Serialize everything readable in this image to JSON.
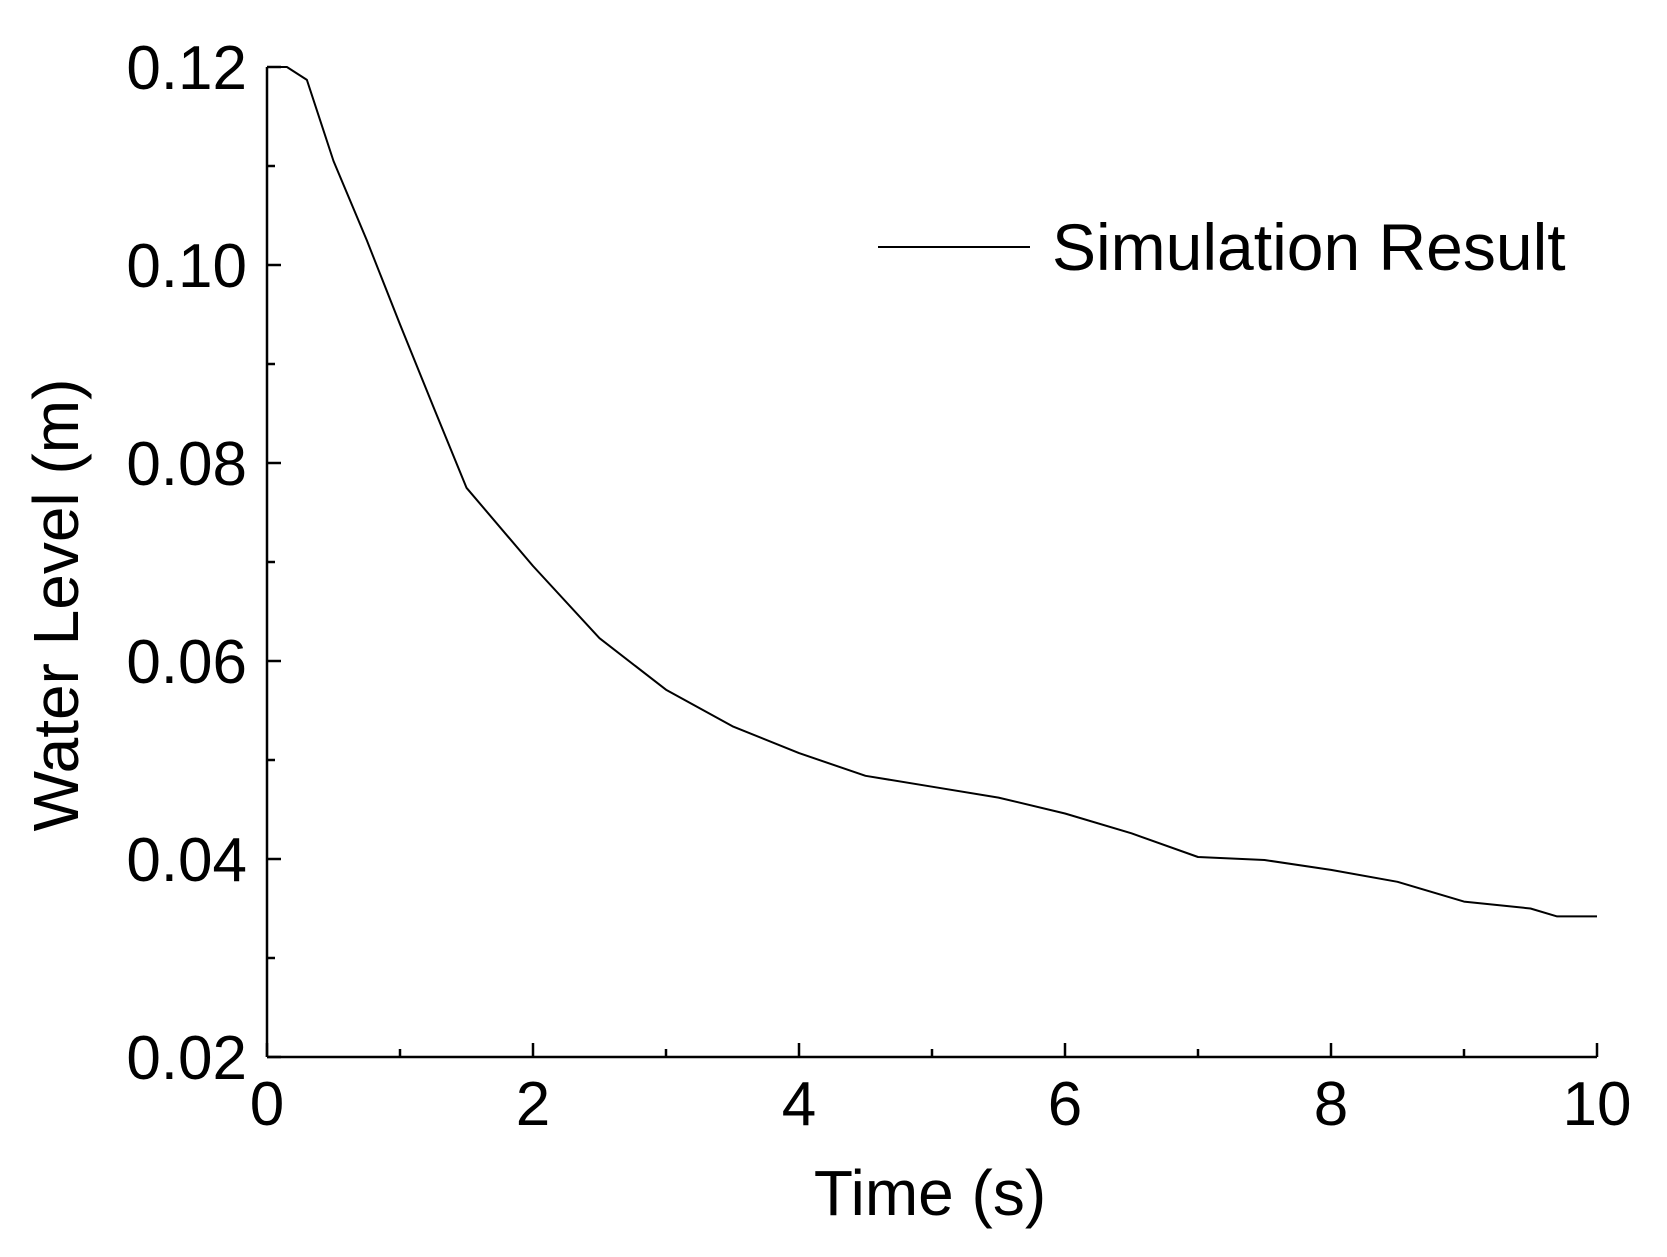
{
  "chart_data": {
    "type": "line",
    "title": "",
    "xlabel": "Time (s)",
    "ylabel": "Water Level (m)",
    "xlim": [
      0,
      10
    ],
    "ylim": [
      0.02,
      0.12
    ],
    "x_ticks": [
      0,
      2,
      4,
      6,
      8,
      10
    ],
    "x_tick_labels": [
      "0",
      "2",
      "4",
      "6",
      "8",
      "10"
    ],
    "y_ticks": [
      0.02,
      0.04,
      0.06,
      0.08,
      0.1,
      0.12
    ],
    "y_tick_labels": [
      "0.02",
      "0.04",
      "0.06",
      "0.08",
      "0.10",
      "0.12"
    ],
    "grid": false,
    "legend_position": "top-right",
    "line_color": "#000000",
    "series": [
      {
        "name": "Simulation Result",
        "x": [
          0,
          0.15,
          0.3,
          0.5,
          0.75,
          1.0,
          1.25,
          1.5,
          2.0,
          2.5,
          3.0,
          3.5,
          4.0,
          4.5,
          5.0,
          5.5,
          6.0,
          6.5,
          7.0,
          7.5,
          8.0,
          8.5,
          9.0,
          9.5,
          9.7,
          10.0
        ],
        "y": [
          0.12,
          0.12,
          0.1187,
          0.1105,
          0.1025,
          0.094,
          0.0857,
          0.0775,
          0.0696,
          0.0623,
          0.0571,
          0.0534,
          0.0507,
          0.0484,
          0.0473,
          0.0462,
          0.0446,
          0.0426,
          0.0402,
          0.0399,
          0.0389,
          0.0377,
          0.0357,
          0.035,
          0.0342,
          0.0342
        ]
      }
    ]
  }
}
